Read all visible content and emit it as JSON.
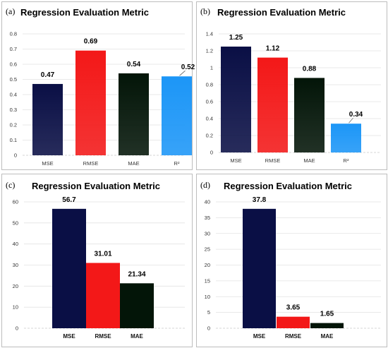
{
  "colors": {
    "MSE": "#0a0f45",
    "RMSE": "#f31818",
    "MAE": "#031508",
    "R2": "#1c96f7"
  },
  "chart_data": [
    {
      "panel": "(a)",
      "type": "bar",
      "title": "Regression Evaluation Metric",
      "categories": [
        "MSE",
        "RMSE",
        "MAE",
        "R²"
      ],
      "keys": [
        "MSE",
        "RMSE",
        "MAE",
        "R2"
      ],
      "values": [
        0.47,
        0.69,
        0.54,
        0.52
      ],
      "value_labels": [
        "0.47",
        "0.69",
        "0.54",
        "0.52"
      ],
      "yticks": [
        "0",
        "0.1",
        "0.2",
        "0.3",
        "0.4",
        "0.5",
        "0.6",
        "0.7",
        "0.8"
      ],
      "ylim": [
        0,
        0.8
      ],
      "grid": true
    },
    {
      "panel": "(b)",
      "type": "bar",
      "title": "Regression Evaluation Metric",
      "categories": [
        "MSE",
        "RMSE",
        "MAE",
        "R²"
      ],
      "keys": [
        "MSE",
        "RMSE",
        "MAE",
        "R2"
      ],
      "values": [
        1.25,
        1.12,
        0.88,
        0.34
      ],
      "value_labels": [
        "1.25",
        "1.12",
        "0.88",
        "0.34"
      ],
      "yticks": [
        "0",
        "0.2",
        "0.4",
        "0.6",
        "0.8",
        "1",
        "1.2",
        "1.4"
      ],
      "ylim": [
        0,
        1.4
      ],
      "grid": true
    },
    {
      "panel": "(c)",
      "type": "bar",
      "title": "Regression Evaluation Metric",
      "categories": [
        "MSE",
        "RMSE",
        "MAE"
      ],
      "keys": [
        "MSE",
        "RMSE",
        "MAE"
      ],
      "values": [
        56.7,
        31.01,
        21.34
      ],
      "value_labels": [
        "56.7",
        "31.01",
        "21.34"
      ],
      "yticks": [
        "0",
        "10",
        "20",
        "30",
        "40",
        "50",
        "60"
      ],
      "ylim": [
        0,
        60
      ],
      "grid": true
    },
    {
      "panel": "(d)",
      "type": "bar",
      "title": "Regression Evaluation Metric",
      "categories": [
        "MSE",
        "RMSE",
        "MAE"
      ],
      "keys": [
        "MSE",
        "RMSE",
        "MAE"
      ],
      "values": [
        37.8,
        3.65,
        1.65
      ],
      "value_labels": [
        "37.8",
        "3.65",
        "1.65"
      ],
      "yticks": [
        "0",
        "5",
        "10",
        "15",
        "20",
        "25",
        "30",
        "35",
        "40"
      ],
      "ylim": [
        0,
        40
      ],
      "grid": true
    }
  ]
}
